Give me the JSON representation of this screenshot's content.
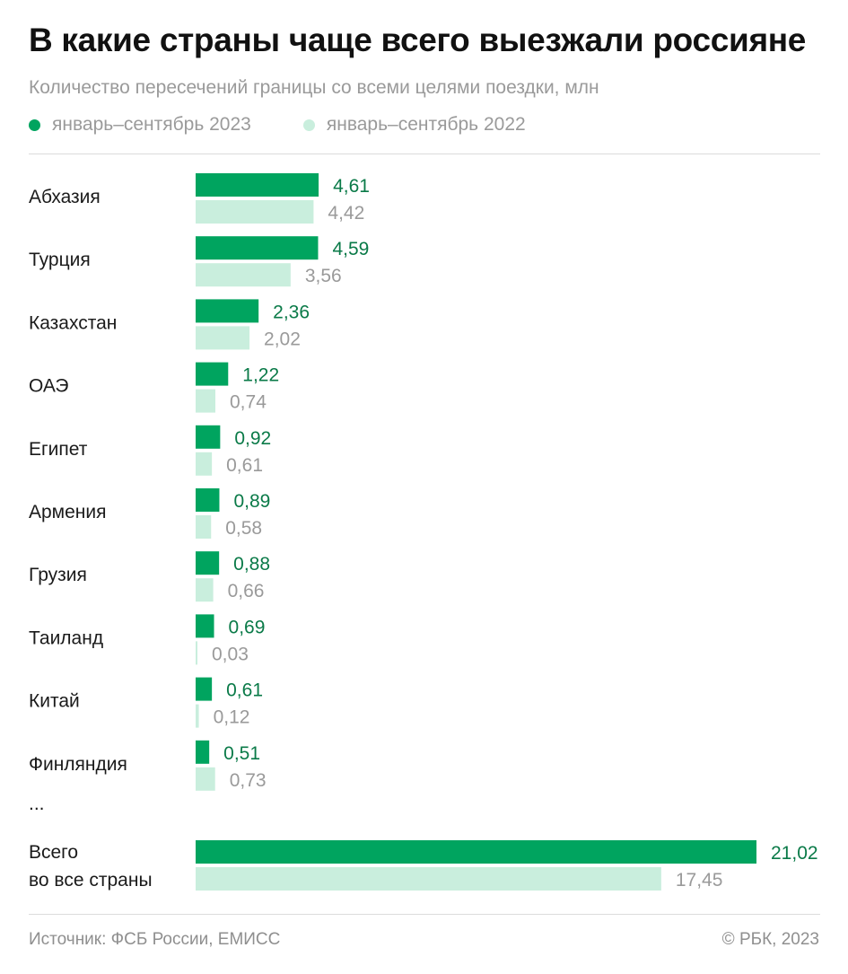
{
  "header": {
    "title": "В какие страны чаще всего выезжали россияне",
    "subtitle": "Количество пересечений границы со всеми целями поездки, млн"
  },
  "colors": {
    "current": "#00a45f",
    "previous": "#c9eedd",
    "current_label": "#0a7a48",
    "previous_label": "#9a9a9a"
  },
  "chart_data": {
    "type": "bar",
    "orientation": "horizontal",
    "title": "В какие страны чаще всего выезжали россияне",
    "subtitle": "Количество пересечений границы со всеми целями поездки, млн",
    "legend_position": "top-left",
    "grid": false,
    "categories": [
      "Абхазия",
      "Турция",
      "Казахстан",
      "ОАЭ",
      "Египет",
      "Армения",
      "Грузия",
      "Таиланд",
      "Китай",
      "Финляндия"
    ],
    "series": [
      {
        "name": "январь–сентябрь 2023",
        "values": [
          4.61,
          4.59,
          2.36,
          1.22,
          0.92,
          0.89,
          0.88,
          0.69,
          0.61,
          0.51
        ],
        "labels": [
          "4,61",
          "4,59",
          "2,36",
          "1,22",
          "0,92",
          "0,89",
          "0,88",
          "0,69",
          "0,61",
          "0,51"
        ]
      },
      {
        "name": "январь–сентябрь 2022",
        "values": [
          4.42,
          3.56,
          2.02,
          0.74,
          0.61,
          0.58,
          0.66,
          0.03,
          0.12,
          0.73
        ],
        "labels": [
          "4,42",
          "3,56",
          "2,02",
          "0,74",
          "0,61",
          "0,58",
          "0,66",
          "0,03",
          "0,12",
          "0,73"
        ]
      }
    ],
    "ellipsis": "...",
    "total": {
      "label_lines": [
        "Всего",
        "во все страны"
      ],
      "values": [
        21.02,
        17.45
      ],
      "labels": [
        "21,02",
        "17,45"
      ]
    },
    "xlim": [
      0,
      21.02
    ]
  },
  "footer": {
    "source": "Источник: ФСБ России, ЕМИСС",
    "copyright": "© РБК, 2023"
  }
}
